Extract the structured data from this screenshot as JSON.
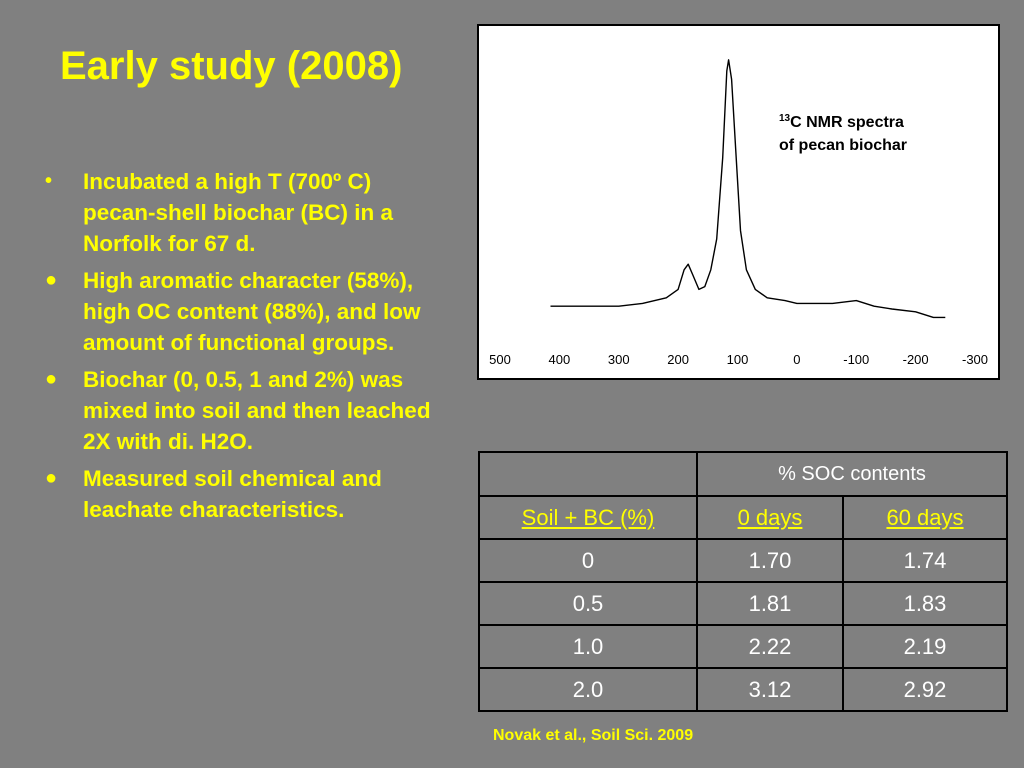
{
  "title": "Early study (2008)",
  "bullets": [
    {
      "marker": "•",
      "text": "Incubated a high T (700º C) pecan-shell biochar (BC) in a Norfolk for 67 d."
    },
    {
      "marker": "●",
      "text": "High aromatic character (58%), high OC content (88%), and low amount of functional groups."
    },
    {
      "marker": "●",
      "text": "Biochar (0, 0.5, 1 and 2%) was  mixed into soil and then leached 2X with di. H2O."
    },
    {
      "marker": "●",
      "text": "Measured soil chemical and leachate characteristics."
    }
  ],
  "chart_data": {
    "type": "line",
    "annotation": {
      "superscript": "13",
      "lines": [
        "C NMR spectra",
        "of pecan biochar"
      ]
    },
    "x": [
      415,
      380,
      340,
      300,
      260,
      220,
      200,
      190,
      183,
      175,
      165,
      155,
      145,
      135,
      125,
      118,
      115,
      110,
      103,
      95,
      85,
      70,
      50,
      20,
      0,
      -30,
      -60,
      -100,
      -130,
      -160,
      -200,
      -230,
      -250
    ],
    "values": [
      11,
      11,
      11,
      11,
      12,
      14,
      17,
      24,
      26,
      22,
      17,
      18,
      24,
      35,
      64,
      95,
      99,
      92,
      67,
      38,
      24,
      17,
      14,
      13,
      12,
      12,
      12,
      13,
      11,
      10,
      9,
      7,
      7
    ],
    "color": "#000000",
    "xlim": [
      500,
      -300
    ],
    "xticks": [
      500,
      400,
      300,
      200,
      100,
      0,
      -100,
      -200,
      -300
    ],
    "ylim": [
      0,
      100
    ]
  },
  "table": {
    "group_header": "% SOC contents",
    "columns": [
      "Soil + BC (%)",
      "0 days",
      "60 days"
    ],
    "rows": [
      [
        "0",
        "1.70",
        "1.74"
      ],
      [
        "0.5",
        "1.81",
        "1.83"
      ],
      [
        "1.0",
        "2.22",
        "2.19"
      ],
      [
        "2.0",
        "3.12",
        "2.92"
      ]
    ]
  },
  "citation": "Novak et al., Soil Sci. 2009"
}
